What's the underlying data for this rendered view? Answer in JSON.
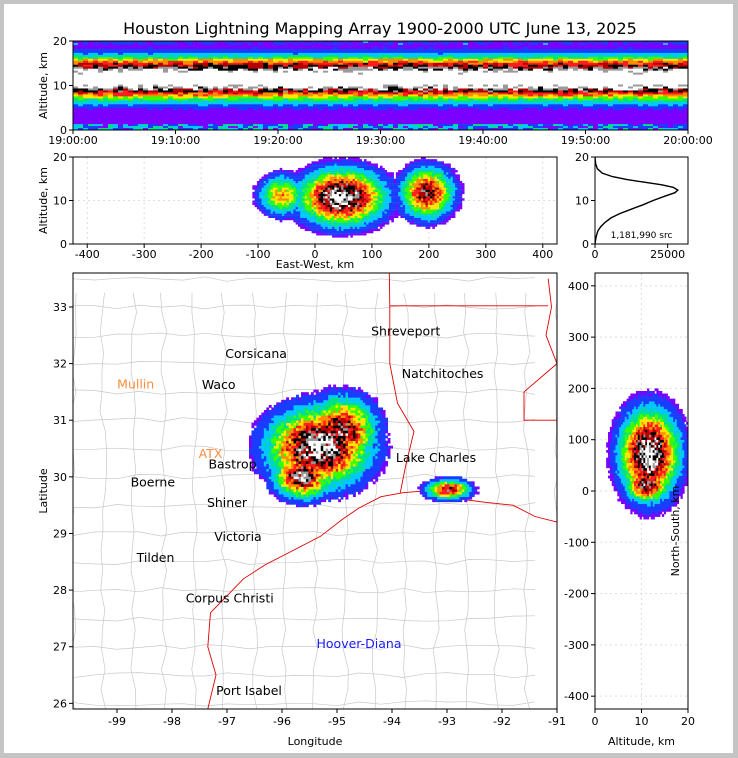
{
  "title": "Houston Lightning Mapping Array 1900-2000 UTC June 13, 2025",
  "colors": {
    "density_scale": [
      "#7a00ff",
      "#1a3cff",
      "#00c8ff",
      "#00e08a",
      "#38ff00",
      "#ffe600",
      "#ff8c00",
      "#ff1e1e",
      "#b40000",
      "#000000",
      "#9a9a9a",
      "#ffffff"
    ],
    "border": "#e00000",
    "county": "#c8c8c8",
    "hoover_diana": "#1a1aff",
    "orange_label": "#ff8c3c",
    "grid": "#dddddd"
  },
  "chart_data": [
    {
      "panel": "time-altitude",
      "type": "heatmap",
      "ylabel": "Altitude, km",
      "x_ticks": [
        "19:00:00",
        "19:10:00",
        "19:20:00",
        "19:30:00",
        "19:40:00",
        "19:50:00",
        "20:00:00"
      ],
      "y_ticks": [
        0,
        10,
        20
      ],
      "ylim": [
        0,
        20
      ]
    },
    {
      "panel": "east-west-altitude",
      "type": "heatmap",
      "xlabel": "East-West, km",
      "ylabel": "Altitude, km",
      "x_ticks": [
        -400,
        -300,
        -200,
        -100,
        0,
        100,
        200,
        300,
        400
      ],
      "y_ticks": [
        0,
        10,
        20
      ],
      "xlim": [
        -425,
        425
      ],
      "ylim": [
        0,
        20
      ]
    },
    {
      "panel": "altitude-histogram",
      "type": "line",
      "x_ticks": [
        0,
        25000
      ],
      "y_ticks": [
        0,
        10,
        20
      ],
      "xlim": [
        0,
        32000
      ],
      "ylim": [
        0,
        20
      ],
      "annotation": "1,181,990 src",
      "x": [
        0,
        200,
        500,
        1000,
        2000,
        3500,
        5500,
        8500,
        12500,
        16500,
        20000,
        24000,
        27500,
        28500,
        27000,
        23000,
        17000,
        11000,
        6000,
        2500,
        800,
        200,
        0
      ],
      "y": [
        0,
        1,
        2,
        3,
        4,
        5,
        6,
        7,
        8,
        9,
        10,
        11,
        11.8,
        12.4,
        13,
        13.6,
        14.2,
        14.8,
        15.5,
        16.3,
        17.3,
        18.5,
        20
      ]
    },
    {
      "panel": "plan-view",
      "type": "scatter",
      "xlabel": "Longitude",
      "ylabel": "Latitude",
      "x_ticks": [
        -99,
        -98,
        -97,
        -96,
        -95,
        -94,
        -93,
        -92,
        -91
      ],
      "y_ticks": [
        26,
        27,
        28,
        29,
        30,
        31,
        32,
        33
      ],
      "xlim": [
        -99.8,
        -91
      ],
      "ylim": [
        25.9,
        33.6
      ]
    },
    {
      "panel": "altitude-north-south",
      "type": "heatmap",
      "xlabel": "Altitude, km",
      "ylabel": "North-South, km",
      "x_ticks": [
        0,
        10,
        20
      ],
      "y_ticks": [
        -400,
        -300,
        -200,
        -100,
        0,
        100,
        200,
        300,
        400
      ],
      "xlim": [
        0,
        20
      ],
      "ylim": [
        -425,
        425
      ]
    }
  ],
  "cities": [
    {
      "name": "Shreveport",
      "lon": -93.75,
      "lat": 32.5,
      "color": "#000000"
    },
    {
      "name": "Corsicana",
      "lon": -96.47,
      "lat": 32.1,
      "color": "#000000"
    },
    {
      "name": "Mullin",
      "lon": -98.66,
      "lat": 31.56,
      "color": "#ff8c3c"
    },
    {
      "name": "Waco",
      "lon": -97.15,
      "lat": 31.55,
      "color": "#000000"
    },
    {
      "name": "Natchitoches",
      "lon": -93.08,
      "lat": 31.75,
      "color": "#000000"
    },
    {
      "name": "Lake Charles",
      "lon": -93.2,
      "lat": 30.26,
      "color": "#000000"
    },
    {
      "name": "ATX",
      "lon": -97.3,
      "lat": 30.33,
      "color": "#ff8c3c"
    },
    {
      "name": "Bastrop",
      "lon": -96.9,
      "lat": 30.15,
      "color": "#000000"
    },
    {
      "name": "Boerne",
      "lon": -98.35,
      "lat": 29.83,
      "color": "#000000"
    },
    {
      "name": "Shiner",
      "lon": -97.0,
      "lat": 29.47,
      "color": "#000000"
    },
    {
      "name": "Victoria",
      "lon": -96.8,
      "lat": 28.87,
      "color": "#000000"
    },
    {
      "name": "Tilden",
      "lon": -98.3,
      "lat": 28.5,
      "color": "#000000"
    },
    {
      "name": "Corpus Christi",
      "lon": -96.95,
      "lat": 27.78,
      "color": "#000000"
    },
    {
      "name": "Hoover-Diana",
      "lon": -94.6,
      "lat": 26.98,
      "color": "#1a1aff"
    },
    {
      "name": "Port Isabel",
      "lon": -96.6,
      "lat": 26.15,
      "color": "#000000"
    }
  ]
}
